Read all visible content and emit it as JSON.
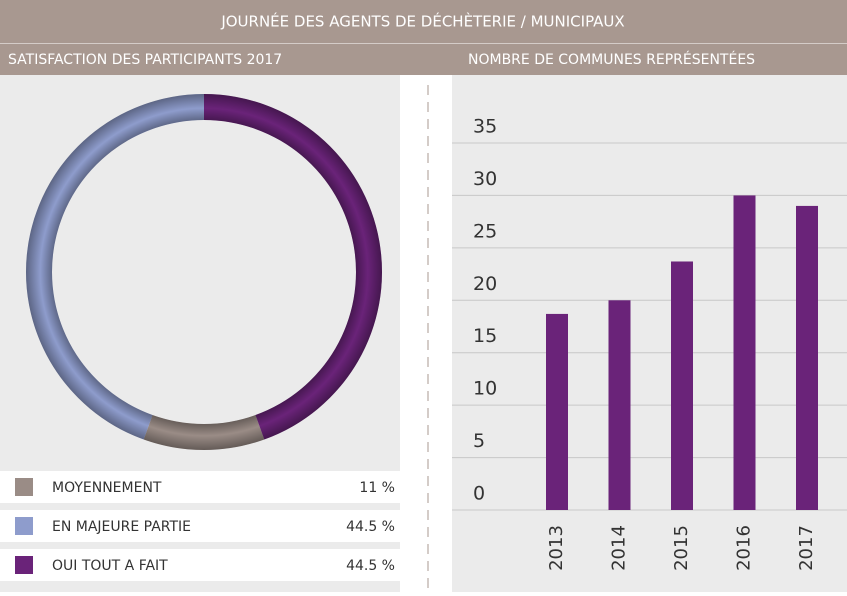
{
  "header": {
    "title": "JOURNÉE DES AGENTS DE DÉCHÈTERIE / MUNICIPAUX"
  },
  "chart_data": [
    {
      "type": "donut",
      "title": "SATISFACTION DES PARTICIPANTS 2017",
      "categories": [
        "MOYENNEMENT",
        "EN MAJEURE PARTIE",
        "OUI TOUT A FAIT"
      ],
      "values": [
        11,
        44.5,
        44.5
      ],
      "value_labels": [
        "11 %",
        "44.5 %",
        "44.5 %"
      ],
      "colors": [
        "#9a8c86",
        "#8e9ccc",
        "#6a2379"
      ]
    },
    {
      "type": "bar",
      "title": "NOMBRE DE COMMUNES REPRÉSENTÉES",
      "categories": [
        "2013",
        "2014",
        "2015",
        "2016",
        "2017"
      ],
      "values": [
        18.7,
        20,
        23.7,
        30,
        29
      ],
      "color": "#6a2379",
      "ylim": [
        0,
        35
      ],
      "yticks": [
        0,
        5,
        10,
        15,
        20,
        25,
        30,
        35
      ],
      "grid": true
    }
  ]
}
